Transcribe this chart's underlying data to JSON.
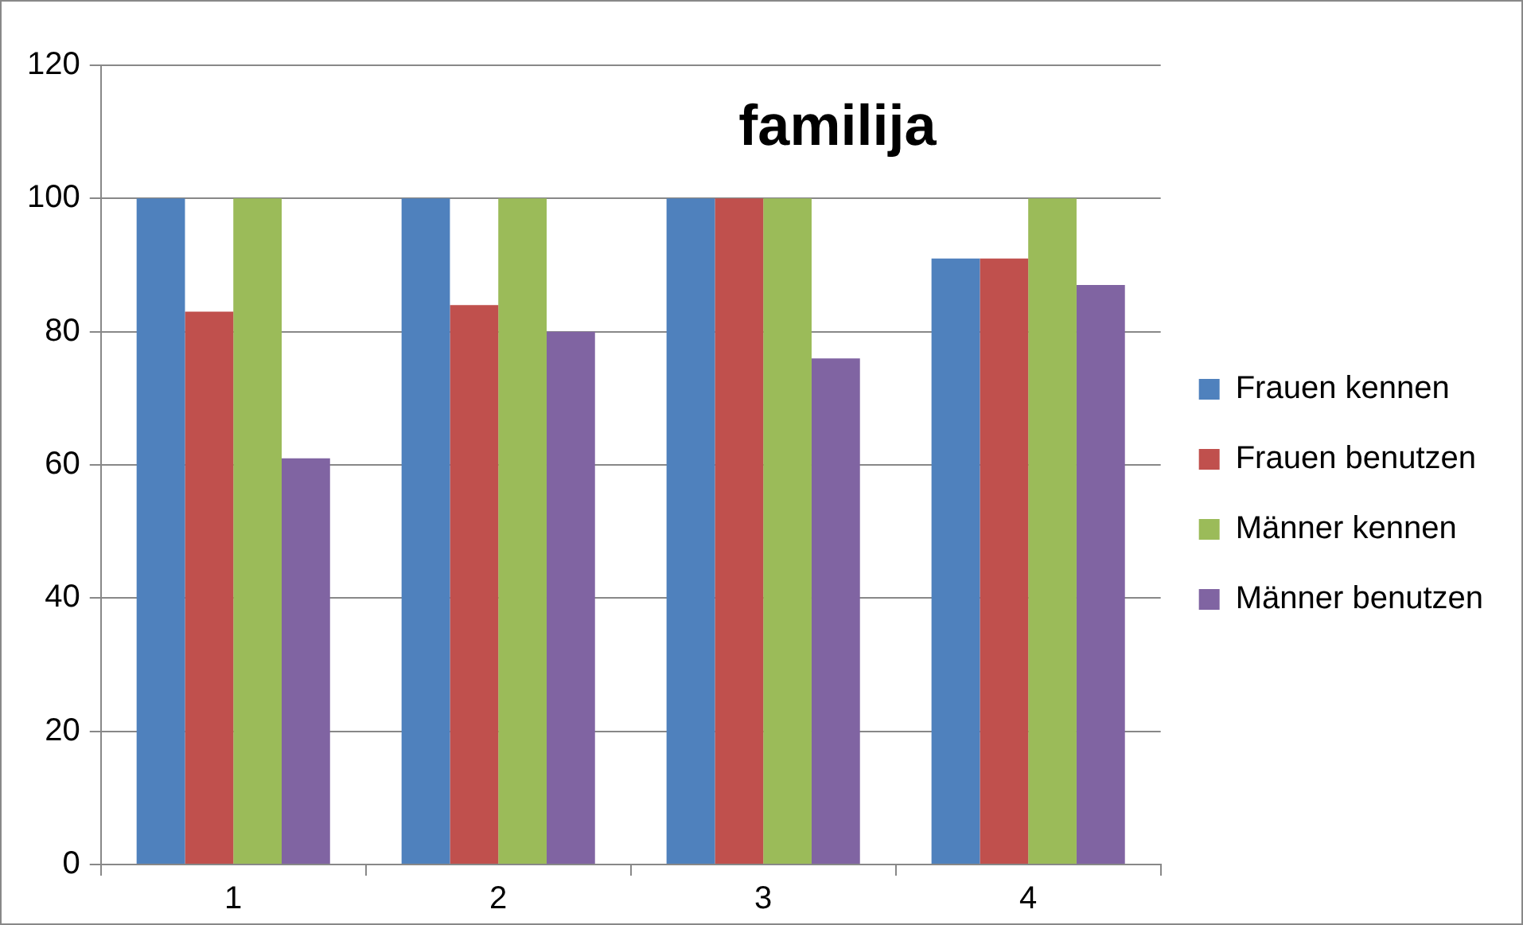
{
  "chart_data": {
    "type": "bar",
    "title": "familija",
    "categories": [
      "1",
      "2",
      "3",
      "4"
    ],
    "series": [
      {
        "name": "Frauen kennen",
        "color": "#4f81bd",
        "values": [
          100,
          100,
          100,
          91
        ]
      },
      {
        "name": "Frauen benutzen",
        "color": "#c0504d",
        "values": [
          83,
          84,
          100,
          91
        ]
      },
      {
        "name": "Männer kennen",
        "color": "#9bbb59",
        "values": [
          100,
          100,
          100,
          100
        ]
      },
      {
        "name": "Männer benutzen",
        "color": "#8064a2",
        "values": [
          61,
          80,
          76,
          87
        ]
      }
    ],
    "ylim": [
      0,
      120
    ],
    "yticks": [
      0,
      20,
      40,
      60,
      80,
      100,
      120
    ],
    "grid": "y",
    "legend": "right"
  }
}
